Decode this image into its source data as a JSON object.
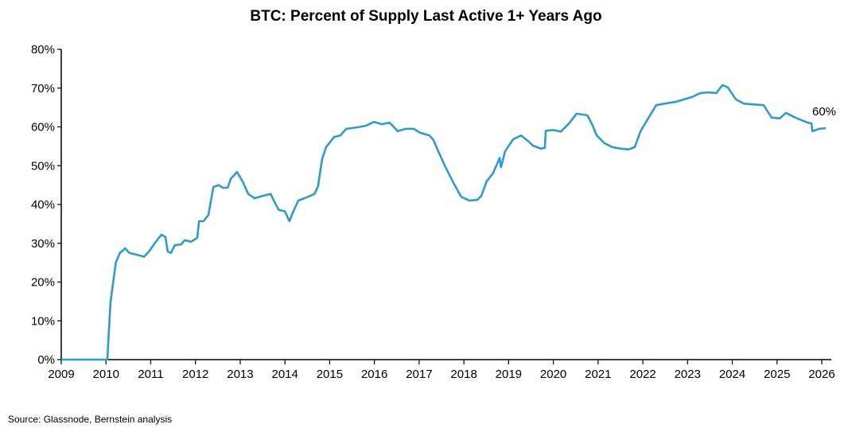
{
  "chart_data": {
    "type": "line",
    "title": "BTC: Percent of Supply Last Active 1+ Years Ago",
    "xlabel": "",
    "ylabel": "",
    "xlim": [
      2009,
      2026
    ],
    "ylim": [
      0,
      80
    ],
    "x_ticks": [
      "2009",
      "2010",
      "2011",
      "2012",
      "2013",
      "2014",
      "2015",
      "2016",
      "2017",
      "2018",
      "2019",
      "2020",
      "2021",
      "2022",
      "2023",
      "2024",
      "2025",
      "2026"
    ],
    "y_ticks": [
      "0%",
      "10%",
      "20%",
      "30%",
      "40%",
      "50%",
      "60%",
      "70%",
      "80%"
    ],
    "grid": false,
    "line_color": "#2e9bd0",
    "annotation": "60%",
    "series": [
      {
        "x": [
          2009.0,
          2010.03,
          2010.1,
          2010.22,
          2010.31,
          2010.43,
          2010.52,
          2010.8,
          2010.85,
          2010.97,
          2011.1,
          2011.24,
          2011.33,
          2011.38,
          2011.45,
          2011.54,
          2011.68,
          2011.76,
          2011.9,
          2012.04,
          2012.08,
          2012.18,
          2012.29,
          2012.4,
          2012.52,
          2012.61,
          2012.72,
          2012.79,
          2012.93,
          2013.05,
          2013.18,
          2013.32,
          2013.5,
          2013.68,
          2013.77,
          2013.86,
          2014.0,
          2014.1,
          2014.17,
          2014.3,
          2014.48,
          2014.66,
          2014.74,
          2014.83,
          2014.92,
          2015.1,
          2015.24,
          2015.37,
          2015.63,
          2015.81,
          2015.99,
          2016.17,
          2016.34,
          2016.52,
          2016.7,
          2016.88,
          2017.02,
          2017.23,
          2017.32,
          2017.41,
          2017.59,
          2017.77,
          2017.94,
          2018.12,
          2018.3,
          2018.39,
          2018.51,
          2018.65,
          2018.8,
          2018.83,
          2018.92,
          2019.1,
          2019.28,
          2019.45,
          2019.54,
          2019.72,
          2019.81,
          2019.83,
          2019.99,
          2020.17,
          2020.35,
          2020.52,
          2020.76,
          2020.88,
          2020.97,
          2021.14,
          2021.32,
          2021.5,
          2021.68,
          2021.82,
          2021.95,
          2022.13,
          2022.3,
          2022.48,
          2022.75,
          2023.1,
          2023.28,
          2023.46,
          2023.64,
          2023.78,
          2023.9,
          2024.08,
          2024.26,
          2024.7,
          2024.88,
          2025.06,
          2025.2,
          2025.41,
          2025.68,
          2025.77,
          2025.79,
          2025.95,
          2026.09
        ],
        "y": [
          0,
          0,
          14.8,
          25,
          27.5,
          28.7,
          27.5,
          26.7,
          26.5,
          28,
          30.2,
          32.2,
          31.6,
          27.9,
          27.5,
          29.5,
          29.7,
          30.8,
          30.4,
          31.4,
          35.7,
          35.7,
          37.3,
          44.5,
          45,
          44.3,
          44.3,
          46.6,
          48.4,
          46,
          42.7,
          41.6,
          42.2,
          42.7,
          40.6,
          38.6,
          38.2,
          35.7,
          37.7,
          41,
          41.8,
          42.7,
          44.7,
          51.7,
          54.8,
          57.4,
          57.8,
          59.5,
          59.9,
          60.3,
          61.3,
          60.7,
          61.1,
          58.9,
          59.5,
          59.5,
          58.5,
          57.8,
          56.6,
          54.2,
          49.6,
          45.5,
          42,
          41,
          41.2,
          42.2,
          46,
          48,
          52,
          49.6,
          53.7,
          56.8,
          57.8,
          56.2,
          55.2,
          54.4,
          54.6,
          59,
          59.2,
          58.8,
          60.9,
          63.4,
          63,
          60.3,
          57.8,
          55.8,
          54.8,
          54.4,
          54.2,
          54.8,
          58.9,
          62.4,
          65.6,
          66,
          66.5,
          67.7,
          68.7,
          68.9,
          68.7,
          70.8,
          70.2,
          67.1,
          66,
          65.6,
          62.4,
          62.2,
          63.6,
          62.4,
          61.1,
          60.9,
          58.9,
          59.5,
          59.7
        ]
      }
    ]
  },
  "source": "Source: Glassnode, Bernstein analysis"
}
